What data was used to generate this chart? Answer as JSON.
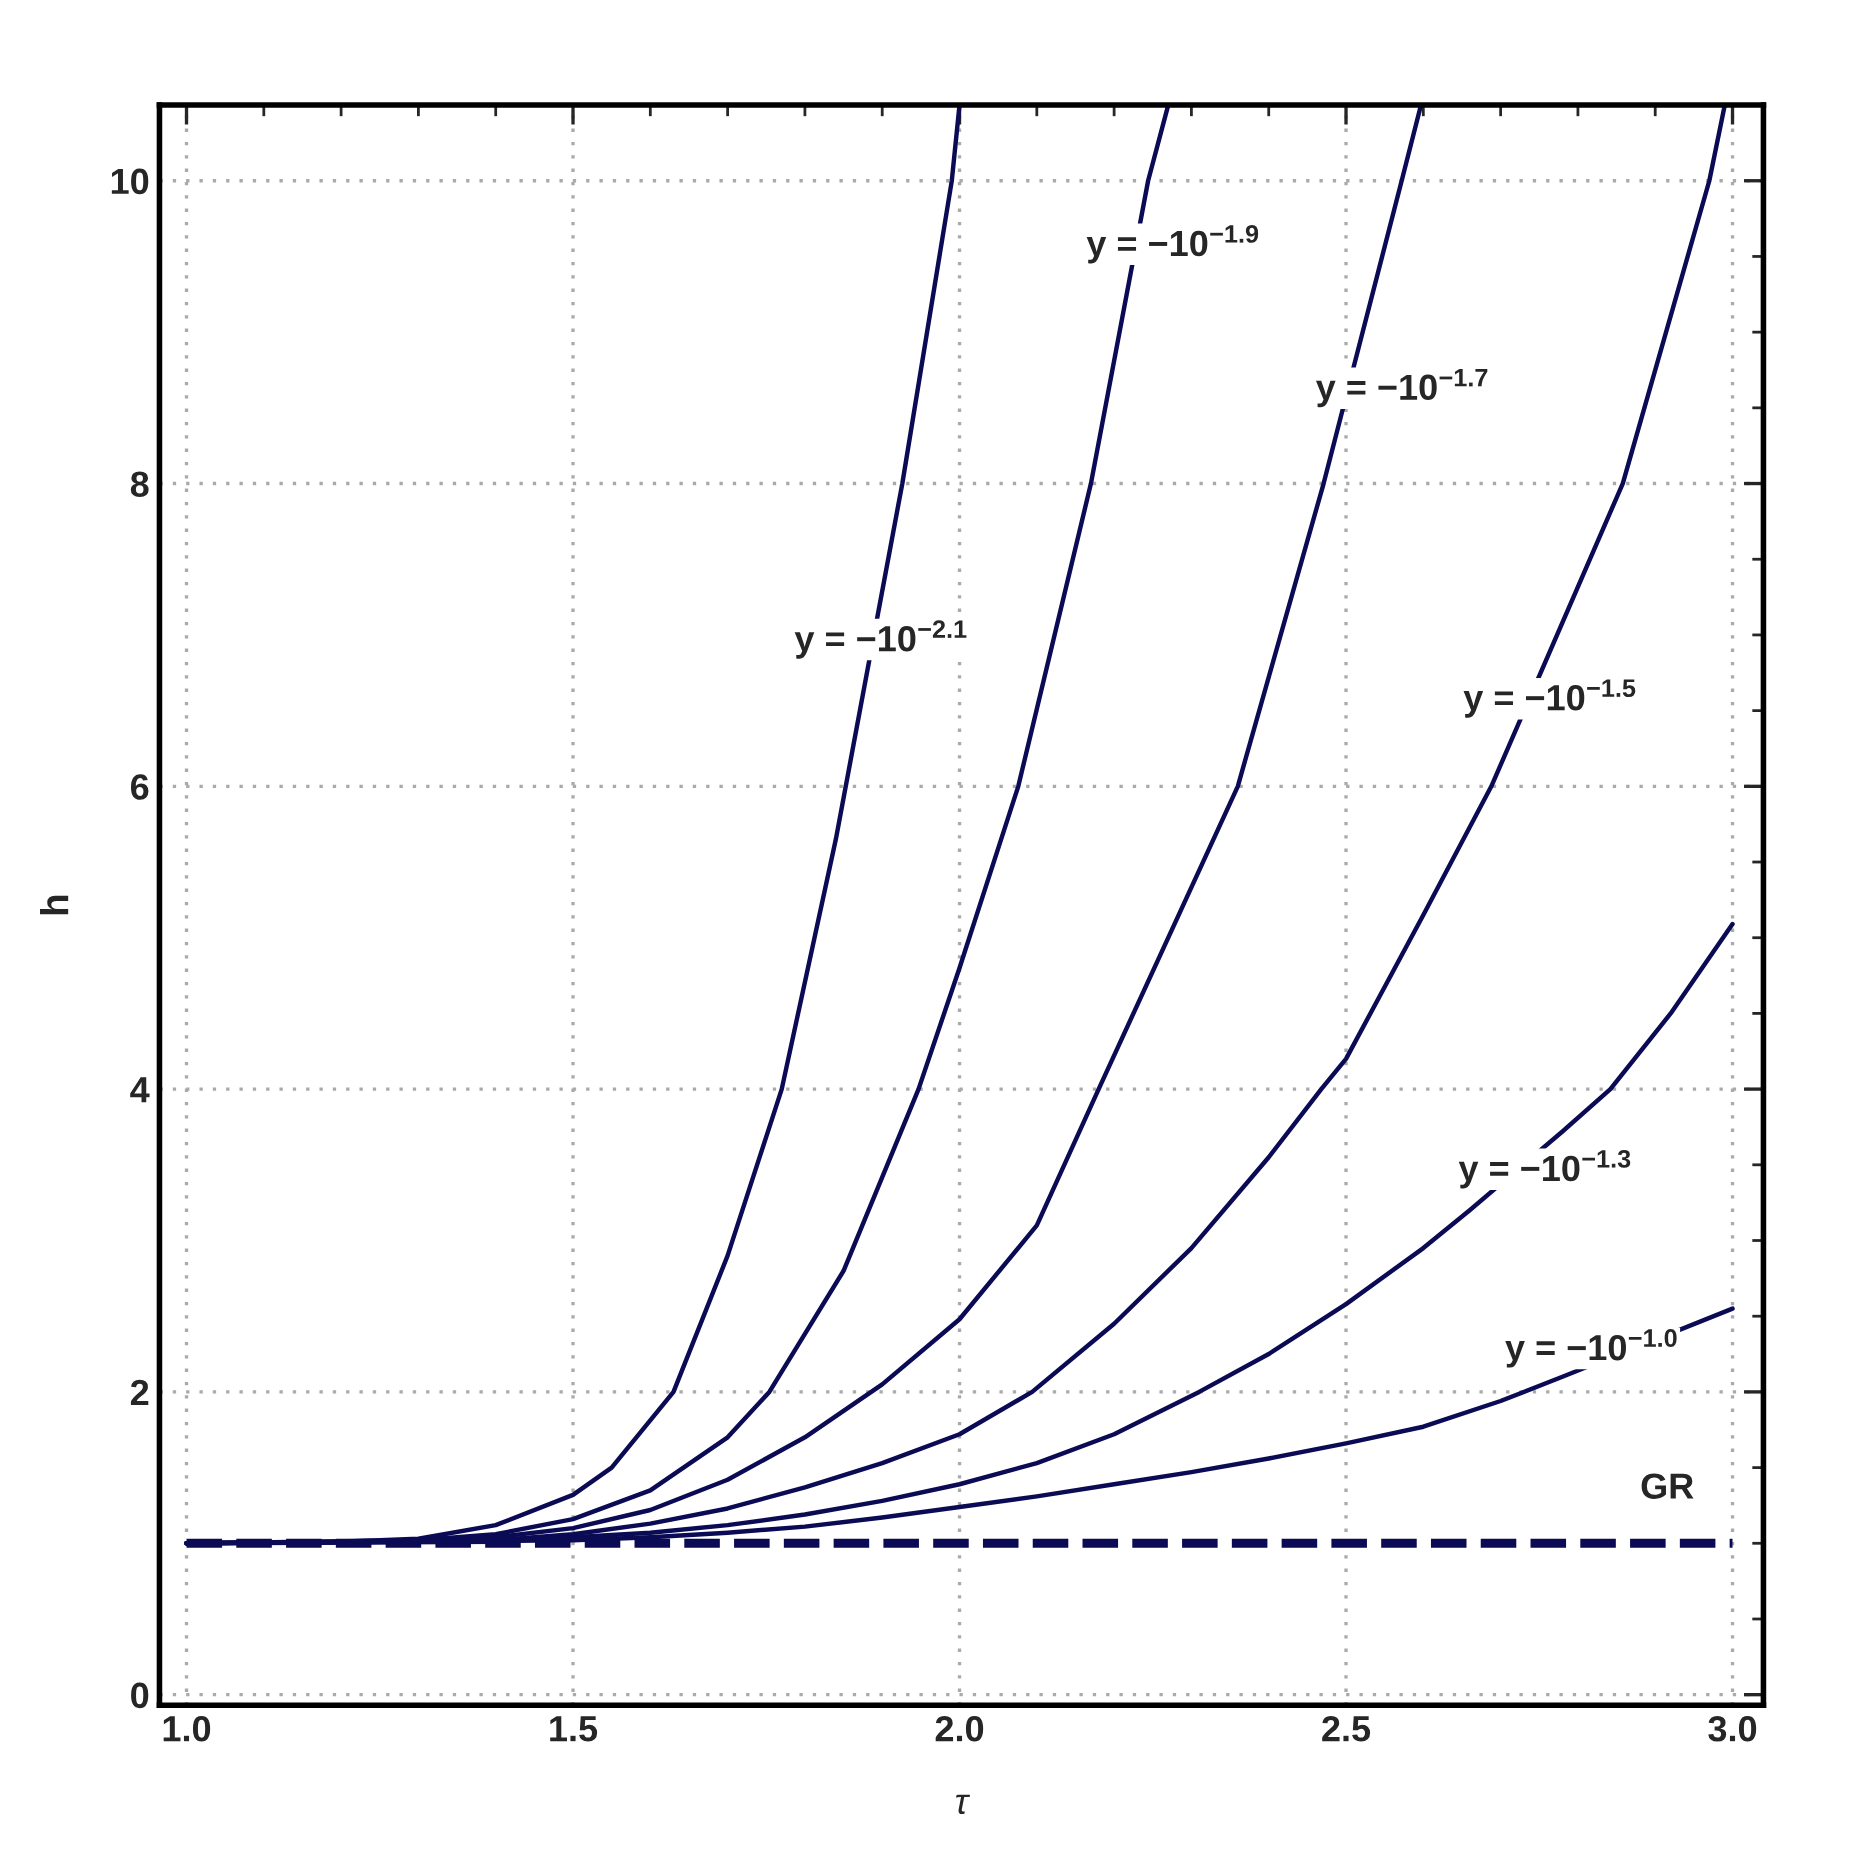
{
  "chart_data": {
    "type": "line",
    "xlabel": "τ",
    "ylabel": "h",
    "xlim": [
      0.965,
      3.04
    ],
    "ylim": [
      -0.07,
      10.5
    ],
    "xticks": [
      {
        "value": 1.0,
        "label": "1.0"
      },
      {
        "value": 1.1,
        "label": null
      },
      {
        "value": 1.2,
        "label": null
      },
      {
        "value": 1.3,
        "label": null
      },
      {
        "value": 1.4,
        "label": null
      },
      {
        "value": 1.5,
        "label": "1.5"
      },
      {
        "value": 1.6,
        "label": null
      },
      {
        "value": 1.7,
        "label": null
      },
      {
        "value": 1.8,
        "label": null
      },
      {
        "value": 1.9,
        "label": null
      },
      {
        "value": 2.0,
        "label": "2.0"
      },
      {
        "value": 2.1,
        "label": null
      },
      {
        "value": 2.2,
        "label": null
      },
      {
        "value": 2.3,
        "label": null
      },
      {
        "value": 2.4,
        "label": null
      },
      {
        "value": 2.5,
        "label": "2.5"
      },
      {
        "value": 2.6,
        "label": null
      },
      {
        "value": 2.7,
        "label": null
      },
      {
        "value": 2.8,
        "label": null
      },
      {
        "value": 2.9,
        "label": null
      },
      {
        "value": 3.0,
        "label": "3.0"
      }
    ],
    "yticks": [
      0,
      {
        "value": 0.5,
        "label": null
      },
      {
        "value": 1,
        "label": null
      },
      {
        "value": 1.5,
        "label": null
      },
      2,
      {
        "value": 2.5,
        "label": null
      },
      {
        "value": 3,
        "label": null
      },
      {
        "value": 3.5,
        "label": null
      },
      4,
      {
        "value": 4.5,
        "label": null
      },
      {
        "value": 5,
        "label": null
      },
      {
        "value": 5.5,
        "label": null
      },
      6,
      {
        "value": 6.5,
        "label": null
      },
      {
        "value": 7,
        "label": null
      },
      {
        "value": 7.5,
        "label": null
      },
      8,
      {
        "value": 8.5,
        "label": null
      },
      {
        "value": 9,
        "label": null
      },
      {
        "value": 9.5,
        "label": null
      },
      10
    ],
    "grid": true,
    "legend": false,
    "series": [
      {
        "color": "#0b0b55",
        "x": [
          1.0,
          1.2,
          1.3,
          1.4,
          1.5,
          1.55,
          1.63,
          1.7,
          1.77,
          1.84,
          1.926,
          1.99,
          2.0
        ],
        "values": [
          1.0,
          1.01,
          1.03,
          1.12,
          1.32,
          1.5,
          2.0,
          2.9,
          4.0,
          5.65,
          8.0,
          10.0,
          10.5
        ]
      },
      {
        "color": "#0b0b55",
        "x": [
          1.0,
          1.3,
          1.4,
          1.5,
          1.6,
          1.7,
          1.754,
          1.85,
          1.947,
          2.0,
          2.076,
          2.17,
          2.244,
          2.27
        ],
        "values": [
          1.0,
          1.02,
          1.06,
          1.16,
          1.35,
          1.7,
          2.0,
          2.8,
          4.0,
          4.8,
          6.0,
          8.0,
          10.0,
          10.5
        ]
      },
      {
        "color": "#0b0b55",
        "x": [
          1.0,
          1.3,
          1.4,
          1.5,
          1.6,
          1.7,
          1.8,
          1.9,
          2.0,
          2.1,
          2.18,
          2.36,
          2.471,
          2.572,
          2.597
        ],
        "values": [
          1.0,
          1.01,
          1.04,
          1.1,
          1.22,
          1.42,
          1.7,
          2.05,
          2.48,
          3.1,
          4.0,
          6.0,
          8.0,
          10.0,
          10.5
        ]
      },
      {
        "color": "#0b0b55",
        "x": [
          1.0,
          1.4,
          1.5,
          1.6,
          1.7,
          1.8,
          1.9,
          2.0,
          2.094,
          2.2,
          2.3,
          2.4,
          2.468,
          2.5,
          2.6,
          2.688,
          2.858,
          2.97,
          2.99
        ],
        "values": [
          1.0,
          1.02,
          1.06,
          1.13,
          1.23,
          1.37,
          1.53,
          1.72,
          2.0,
          2.45,
          2.95,
          3.55,
          4.0,
          4.2,
          5.15,
          6.0,
          8.0,
          10.0,
          10.5
        ]
      },
      {
        "color": "#0b0b55",
        "x": [
          1.0,
          1.4,
          1.5,
          1.6,
          1.7,
          1.8,
          1.9,
          2.0,
          2.1,
          2.2,
          2.31,
          2.4,
          2.5,
          2.6,
          2.66,
          2.78,
          2.842,
          2.92,
          3.0
        ],
        "values": [
          1.0,
          1.01,
          1.04,
          1.07,
          1.12,
          1.19,
          1.28,
          1.39,
          1.53,
          1.72,
          2.0,
          2.25,
          2.58,
          2.95,
          3.2,
          3.72,
          4.0,
          4.5,
          5.09
        ]
      },
      {
        "color": "#0b0b55",
        "x": [
          1.0,
          1.5,
          1.6,
          1.7,
          1.8,
          1.9,
          2.0,
          2.1,
          2.2,
          2.3,
          2.4,
          2.5,
          2.6,
          2.7,
          2.78,
          2.9,
          3.0
        ],
        "values": [
          1.0,
          1.02,
          1.04,
          1.07,
          1.11,
          1.17,
          1.24,
          1.31,
          1.39,
          1.47,
          1.56,
          1.66,
          1.77,
          1.94,
          2.1,
          null,
          2.55
        ]
      },
      {
        "color": "#0b0b55",
        "line_style": "dashed",
        "x": [
          1.0,
          3.0
        ],
        "values": [
          1.0,
          1.0
        ]
      }
    ],
    "annotations": [
      "y = −10$^{−2.1}$",
      "y = −10$^{−1.9}$",
      "y = −10$^{−1.7}$",
      "y = −10$^{−1.5}$",
      "y = −10$^{−1.3}$",
      "y = −10$^{−1.0}$",
      "GR"
    ]
  }
}
